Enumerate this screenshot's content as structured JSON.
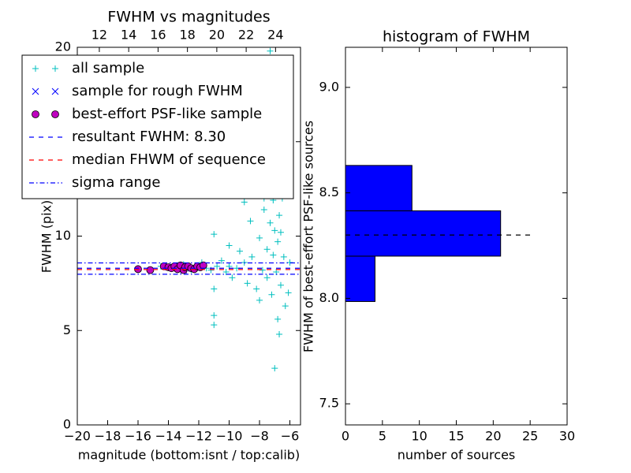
{
  "chart_data": [
    {
      "type": "scatter",
      "title": "FWHM vs magnitudes",
      "xlabel": "magnitude (bottom:isnt / top:calib)",
      "ylabel": "FWHM (pix)",
      "xlim": [
        -20,
        -5.3
      ],
      "xticks": [
        {
          "value": -20,
          "label": "−20"
        },
        {
          "value": -18,
          "label": "−18"
        },
        {
          "value": -16,
          "label": "−16"
        },
        {
          "value": -14,
          "label": "−14"
        },
        {
          "value": -12,
          "label": "−12"
        },
        {
          "value": -10,
          "label": "−10"
        },
        {
          "value": -8,
          "label": "−8"
        },
        {
          "value": -6,
          "label": "−6"
        }
      ],
      "x2lim": [
        10.5,
        25.7
      ],
      "x2ticks": [
        12,
        14,
        16,
        18,
        20,
        22,
        24
      ],
      "ylim": [
        0,
        20
      ],
      "yticks": [
        0,
        5,
        10,
        15,
        20
      ],
      "legend": "upper left",
      "series": [
        {
          "name": "all sample",
          "kind": "points",
          "marker": "+",
          "color": "#00bfbf",
          "x": [
            -16,
            -14.5,
            -13.8,
            -13,
            -12.5,
            -12,
            -11.8,
            -11.5,
            -11.2,
            -11,
            -11,
            -11,
            -11,
            -10.8,
            -10.5,
            -10.2,
            -10,
            -10,
            -9.8,
            -9.5,
            -9.3,
            -9,
            -9,
            -8.8,
            -8.6,
            -8.5,
            -8.3,
            -8.2,
            -8,
            -8,
            -7.9,
            -7.8,
            -7.7,
            -7.6,
            -7.5,
            -7.5,
            -7.4,
            -7.3,
            -7.3,
            -7.2,
            -7.2,
            -7.1,
            -7.1,
            -7,
            -7,
            -7,
            -6.9,
            -6.9,
            -6.8,
            -6.8,
            -6.8,
            -6.7,
            -6.7,
            -6.6,
            -6.6,
            -6.5,
            -6.4,
            -6.3,
            -6.1,
            -6,
            -7.5,
            -6.9,
            -7.7,
            -8.1
          ],
          "values": [
            8.3,
            8.4,
            8.3,
            8.5,
            8.2,
            8.4,
            8.6,
            8.3,
            8.2,
            5.3,
            5.8,
            7.2,
            10.1,
            8.4,
            8.7,
            8.1,
            9.5,
            8.4,
            7.8,
            8.3,
            9.2,
            11.8,
            8.6,
            7.5,
            10.8,
            8.9,
            12.5,
            7.2,
            9.9,
            6.6,
            13.1,
            8.2,
            11.4,
            15.5,
            9.3,
            7.8,
            12.2,
            19.8,
            10.7,
            6.9,
            14.1,
            9,
            11.9,
            3,
            10.3,
            16.8,
            12.8,
            8.1,
            5.6,
            9.7,
            13.5,
            4.8,
            11.1,
            7.4,
            10.2,
            12,
            8.9,
            6.3,
            7,
            8.6,
            17.5,
            15.1,
            12,
            14.2
          ]
        },
        {
          "name": "sample for rough FWHM",
          "kind": "points",
          "marker": "x",
          "color": "#0000ff",
          "x": [
            -14,
            -13,
            -12.5
          ],
          "values": [
            8.35,
            8.2,
            8.3
          ]
        },
        {
          "name": "best-effort PSF-like sample",
          "kind": "points",
          "marker": "o",
          "color": "#bf00bf",
          "x": [
            -16,
            -15.2,
            -14.3,
            -14,
            -13.8,
            -13.6,
            -13.4,
            -13.2,
            -13,
            -12.9,
            -12.7,
            -12.5,
            -12.3,
            -12.1,
            -11.9,
            -11.7
          ],
          "values": [
            8.25,
            8.2,
            8.4,
            8.35,
            8.3,
            8.4,
            8.25,
            8.45,
            8.2,
            8.35,
            8.4,
            8.3,
            8.25,
            8.4,
            8.35,
            8.45
          ]
        },
        {
          "name": "resultant FWHM: 8.30",
          "kind": "hline",
          "linestyle": "dashed",
          "color": "#0000ff",
          "values": [
            8.3
          ]
        },
        {
          "name": "median FHWM of sequence",
          "kind": "hline",
          "linestyle": "dashed",
          "color": "#ff0000",
          "values": [
            8.23
          ]
        },
        {
          "name": "sigma range",
          "kind": "hline",
          "linestyle": "dashdot",
          "color": "#0000ff",
          "values": [
            7.98,
            8.58
          ]
        }
      ]
    },
    {
      "type": "histogram",
      "orientation": "horizontal",
      "title": "histogram of FWHM",
      "xlabel": "number of sources",
      "ylabel": "FWHM of best-effort PSF-like sources",
      "xlim": [
        0,
        30
      ],
      "xticks": [
        0,
        5,
        10,
        15,
        20,
        25,
        30
      ],
      "ylim": [
        7.4,
        9.19
      ],
      "yticks": [
        {
          "value": 7.5,
          "label": "7.5"
        },
        {
          "value": 8,
          "label": "8.0"
        },
        {
          "value": 8.5,
          "label": "8.5"
        },
        {
          "value": 9,
          "label": "9.0"
        }
      ],
      "bins": [
        7.985,
        8.2,
        8.415,
        8.63
      ],
      "values": [
        4,
        21,
        9
      ],
      "color": "#0000ff",
      "reference_line": {
        "value": 8.3,
        "xlim": [
          0,
          25.4
        ],
        "color": "#000000",
        "linestyle": "dashed"
      }
    }
  ]
}
